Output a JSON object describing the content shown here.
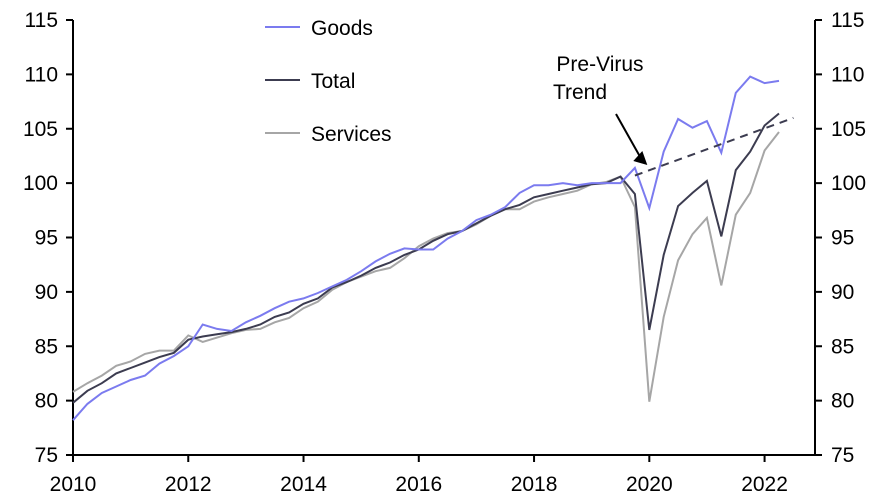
{
  "chart_data": {
    "type": "line",
    "title": "",
    "xlabel": "",
    "ylabel": "",
    "xlim": [
      2010,
      2022.875
    ],
    "ylim": [
      75,
      115
    ],
    "grid": false,
    "legend_position": "top-center",
    "x_ticks": [
      "2010",
      "2012",
      "2014",
      "2016",
      "2018",
      "2020",
      "2022"
    ],
    "y_ticks_left": [
      "75",
      "80",
      "85",
      "90",
      "95",
      "100",
      "105",
      "110",
      "115"
    ],
    "y_ticks_right": [
      "75",
      "80",
      "85",
      "90",
      "95",
      "100",
      "105",
      "110",
      "115"
    ],
    "x_start": 2010,
    "x_step": 0.25,
    "series": [
      {
        "name": "Goods",
        "color": "#7b7bef",
        "values": [
          78.2,
          79.7,
          80.7,
          81.3,
          81.9,
          82.3,
          83.4,
          84.1,
          85.0,
          87.0,
          86.6,
          86.4,
          87.2,
          87.8,
          88.5,
          89.1,
          89.4,
          89.9,
          90.5,
          91.1,
          91.9,
          92.8,
          93.5,
          94.0,
          93.9,
          93.9,
          94.9,
          95.6,
          96.6,
          97.1,
          97.8,
          99.1,
          99.8,
          99.8,
          100.0,
          99.8,
          100.0,
          100.0,
          100.0,
          101.4,
          97.7,
          102.9,
          105.9,
          105.1,
          105.7,
          102.8,
          108.3,
          109.8,
          109.2,
          109.4
        ]
      },
      {
        "name": "Total",
        "color": "#3c3c50",
        "values": [
          79.8,
          80.9,
          81.6,
          82.5,
          83.0,
          83.5,
          84.0,
          84.4,
          85.6,
          85.9,
          86.1,
          86.3,
          86.6,
          87.0,
          87.7,
          88.1,
          88.9,
          89.4,
          90.4,
          90.9,
          91.5,
          92.2,
          92.7,
          93.4,
          93.9,
          94.7,
          95.3,
          95.6,
          96.3,
          97.0,
          97.6,
          98.0,
          98.7,
          99.0,
          99.3,
          99.6,
          99.9,
          100.0,
          100.6,
          99.0,
          86.5,
          93.4,
          97.9,
          99.1,
          100.2,
          95.1,
          101.2,
          102.9,
          105.3,
          106.4
        ]
      },
      {
        "name": "Services",
        "color": "#a6a6a6",
        "values": [
          80.8,
          81.6,
          82.3,
          83.2,
          83.6,
          84.3,
          84.6,
          84.6,
          86.0,
          85.4,
          85.8,
          86.2,
          86.5,
          86.6,
          87.2,
          87.6,
          88.5,
          89.1,
          90.2,
          90.9,
          91.4,
          91.9,
          92.2,
          93.1,
          94.2,
          94.9,
          95.4,
          95.6,
          96.2,
          97.0,
          97.6,
          97.6,
          98.3,
          98.7,
          99.0,
          99.3,
          99.9,
          100.1,
          100.6,
          97.8,
          79.9,
          87.7,
          92.9,
          95.3,
          96.8,
          90.6,
          97.1,
          99.1,
          103.0,
          104.7
        ]
      },
      {
        "name": "Pre-Virus Trend",
        "color": "#3c3c50",
        "style": "dashed",
        "x": [
          2019.75,
          2022.5
        ],
        "values": [
          100.7,
          106.0
        ]
      }
    ],
    "annotations": [
      {
        "text_line1": "Pre-Virus",
        "text_line2": "Trend",
        "arrow_to_x": 2020.0,
        "arrow_to_y": 101.3
      }
    ]
  }
}
